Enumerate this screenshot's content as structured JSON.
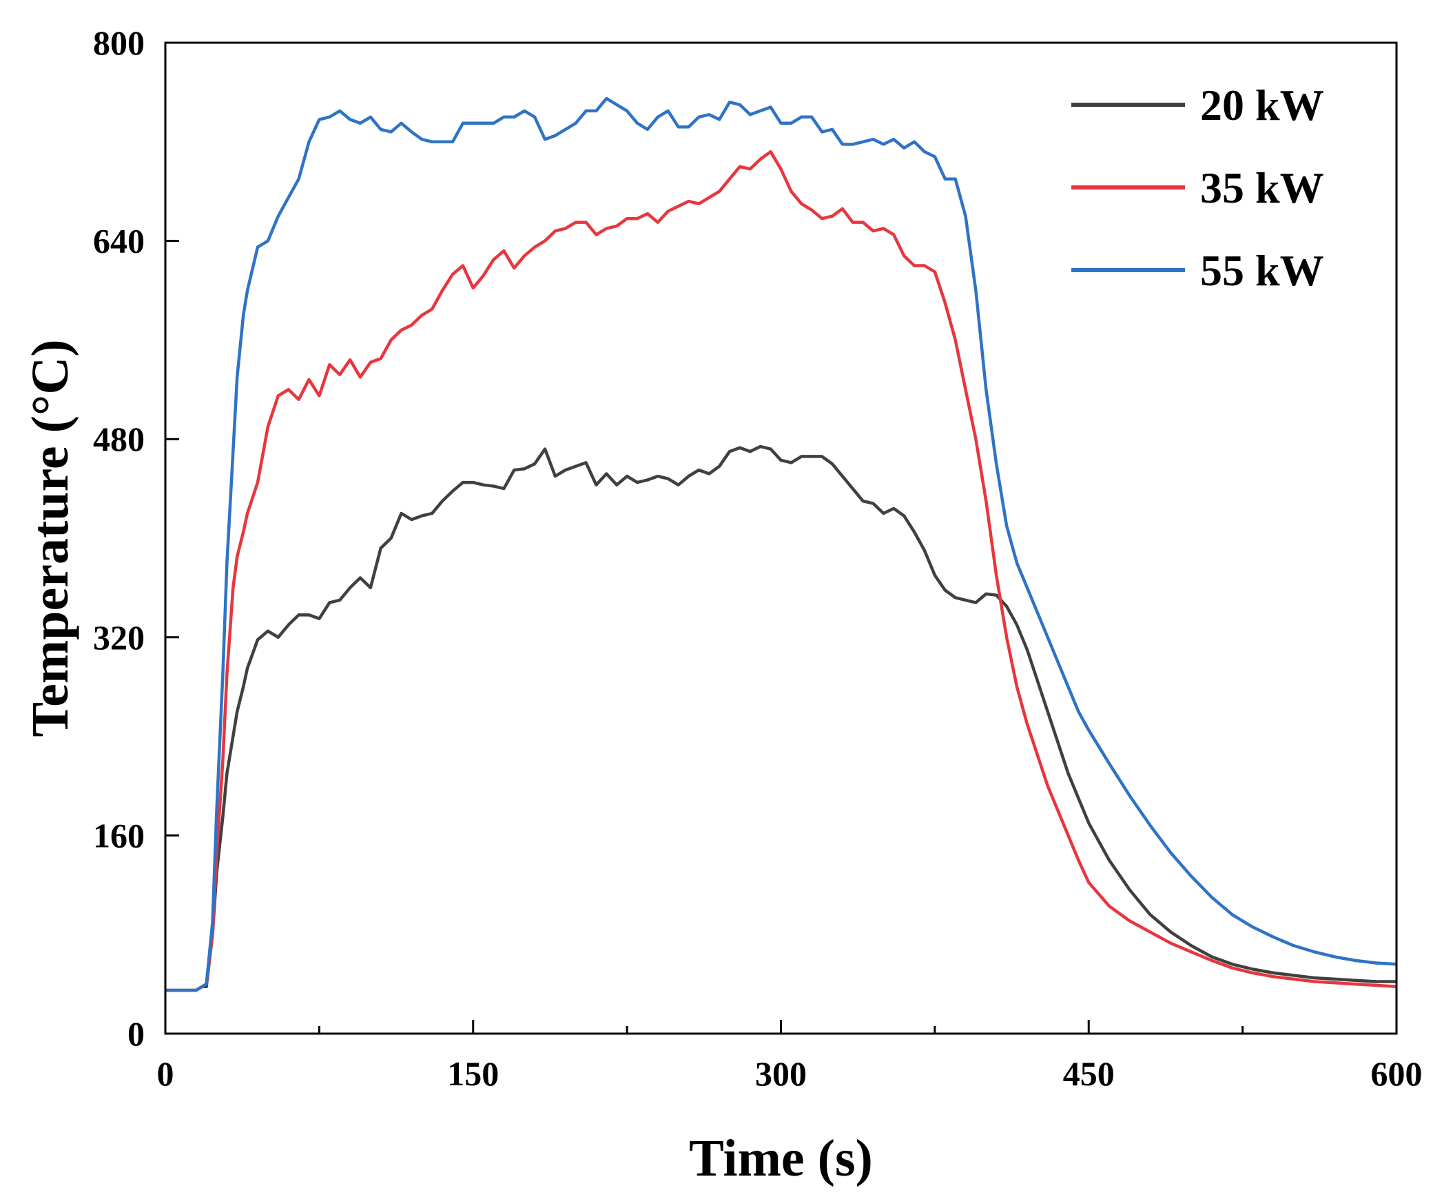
{
  "chart_data": {
    "type": "line",
    "title": "",
    "xlabel": "Time (s)",
    "ylabel": "Temperature (°C)",
    "xlim": [
      0,
      600
    ],
    "ylim": [
      0,
      800
    ],
    "xticks": [
      0,
      150,
      300,
      450,
      600
    ],
    "yticks": [
      0,
      160,
      320,
      480,
      640,
      800
    ],
    "xtick_labels": [
      "0",
      "150",
      "300",
      "450",
      "600"
    ],
    "ytick_labels": [
      "0",
      "160",
      "320",
      "480",
      "640",
      "800"
    ],
    "x_minor_step": 75,
    "grid": false,
    "legend_position": "top-right",
    "series": [
      {
        "name": "20 kW",
        "color": "#404040",
        "x": [
          0,
          10,
          15,
          18,
          20,
          23,
          25,
          28,
          30,
          33,
          35,
          38,
          40,
          45,
          50,
          55,
          60,
          65,
          70,
          75,
          80,
          85,
          90,
          95,
          100,
          105,
          110,
          115,
          120,
          125,
          130,
          135,
          140,
          145,
          150,
          155,
          160,
          165,
          170,
          175,
          180,
          185,
          190,
          195,
          200,
          205,
          210,
          215,
          220,
          225,
          230,
          235,
          240,
          245,
          250,
          255,
          260,
          265,
          270,
          275,
          280,
          285,
          290,
          295,
          300,
          305,
          310,
          315,
          320,
          325,
          330,
          335,
          340,
          345,
          350,
          355,
          360,
          365,
          370,
          375,
          380,
          385,
          390,
          395,
          400,
          405,
          410,
          415,
          420,
          425,
          430,
          435,
          440,
          445,
          450,
          460,
          470,
          480,
          490,
          500,
          510,
          520,
          530,
          540,
          550,
          560,
          570,
          580,
          590,
          600
        ],
        "y": [
          35,
          35,
          35,
          38,
          38,
          80,
          130,
          175,
          210,
          240,
          260,
          280,
          295,
          318,
          325,
          320,
          330,
          338,
          338,
          335,
          348,
          350,
          360,
          368,
          360,
          392,
          400,
          420,
          415,
          418,
          420,
          430,
          438,
          445,
          445,
          443,
          442,
          440,
          455,
          456,
          460,
          472,
          450,
          455,
          458,
          461,
          443,
          452,
          443,
          450,
          445,
          447,
          450,
          448,
          443,
          450,
          455,
          452,
          458,
          470,
          473,
          470,
          474,
          472,
          463,
          461,
          466,
          466,
          466,
          460,
          450,
          440,
          430,
          428,
          420,
          424,
          418,
          405,
          390,
          370,
          358,
          352,
          350,
          348,
          355,
          354,
          345,
          330,
          310,
          285,
          260,
          235,
          210,
          190,
          170,
          140,
          116,
          96,
          82,
          71,
          62,
          56,
          52,
          49,
          47,
          45,
          44,
          43,
          42,
          42
        ]
      },
      {
        "name": "35 kW",
        "color": "#e8363e",
        "x": [
          0,
          10,
          15,
          18,
          20,
          23,
          25,
          28,
          30,
          33,
          35,
          38,
          40,
          45,
          50,
          55,
          60,
          65,
          70,
          75,
          80,
          85,
          90,
          95,
          100,
          105,
          110,
          115,
          120,
          125,
          130,
          135,
          140,
          145,
          150,
          155,
          160,
          165,
          170,
          175,
          180,
          185,
          190,
          195,
          200,
          205,
          210,
          215,
          220,
          225,
          230,
          235,
          240,
          245,
          250,
          255,
          260,
          265,
          270,
          275,
          280,
          285,
          290,
          295,
          300,
          305,
          310,
          315,
          320,
          325,
          330,
          335,
          340,
          345,
          350,
          355,
          360,
          365,
          370,
          375,
          380,
          385,
          390,
          395,
          400,
          405,
          410,
          415,
          420,
          425,
          430,
          435,
          440,
          445,
          450,
          460,
          470,
          480,
          490,
          500,
          510,
          520,
          530,
          540,
          550,
          560,
          570,
          580,
          590,
          600
        ],
        "y": [
          35,
          35,
          35,
          38,
          40,
          80,
          145,
          220,
          290,
          360,
          385,
          405,
          420,
          445,
          490,
          515,
          520,
          512,
          528,
          515,
          540,
          532,
          544,
          530,
          542,
          545,
          560,
          568,
          572,
          580,
          585,
          600,
          613,
          620,
          602,
          612,
          625,
          632,
          618,
          628,
          635,
          640,
          648,
          650,
          655,
          655,
          645,
          650,
          652,
          658,
          658,
          662,
          655,
          664,
          668,
          672,
          670,
          675,
          680,
          690,
          700,
          698,
          706,
          712,
          698,
          680,
          670,
          665,
          658,
          660,
          666,
          655,
          655,
          648,
          650,
          645,
          628,
          620,
          620,
          615,
          590,
          560,
          520,
          480,
          430,
          370,
          320,
          280,
          250,
          225,
          200,
          180,
          160,
          140,
          122,
          103,
          91,
          82,
          73,
          66,
          59,
          53,
          49,
          46,
          44,
          42,
          41,
          40,
          39,
          38
        ]
      },
      {
        "name": "55 kW",
        "color": "#2f73c5",
        "x": [
          0,
          10,
          15,
          18,
          20,
          23,
          25,
          28,
          30,
          33,
          35,
          38,
          40,
          45,
          50,
          55,
          60,
          65,
          70,
          75,
          80,
          85,
          90,
          95,
          100,
          105,
          110,
          115,
          120,
          125,
          130,
          135,
          140,
          145,
          150,
          155,
          160,
          165,
          170,
          175,
          180,
          185,
          190,
          195,
          200,
          205,
          210,
          215,
          220,
          225,
          230,
          235,
          240,
          245,
          250,
          255,
          260,
          265,
          270,
          275,
          280,
          285,
          290,
          295,
          300,
          305,
          310,
          315,
          320,
          325,
          330,
          335,
          340,
          345,
          350,
          355,
          360,
          365,
          370,
          375,
          380,
          385,
          390,
          395,
          400,
          405,
          410,
          415,
          420,
          425,
          430,
          435,
          440,
          445,
          450,
          460,
          470,
          480,
          490,
          500,
          510,
          520,
          530,
          540,
          550,
          560,
          570,
          580,
          590,
          600
        ],
        "y": [
          35,
          35,
          35,
          38,
          40,
          90,
          180,
          290,
          380,
          470,
          530,
          580,
          600,
          635,
          640,
          660,
          675,
          690,
          720,
          738,
          740,
          745,
          738,
          735,
          740,
          730,
          728,
          735,
          728,
          722,
          720,
          720,
          720,
          735,
          735,
          735,
          735,
          740,
          740,
          745,
          740,
          722,
          725,
          730,
          735,
          745,
          745,
          755,
          750,
          745,
          735,
          730,
          740,
          745,
          732,
          732,
          740,
          742,
          738,
          752,
          750,
          742,
          745,
          748,
          735,
          735,
          740,
          740,
          728,
          730,
          718,
          718,
          720,
          722,
          718,
          722,
          715,
          720,
          712,
          708,
          690,
          690,
          660,
          600,
          520,
          460,
          410,
          380,
          360,
          340,
          320,
          300,
          280,
          260,
          245,
          218,
          192,
          168,
          146,
          127,
          110,
          96,
          86,
          78,
          71,
          66,
          62,
          59,
          57,
          56
        ]
      }
    ]
  }
}
